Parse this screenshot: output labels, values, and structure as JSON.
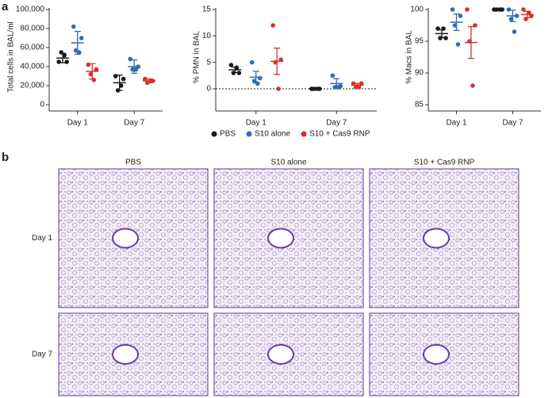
{
  "panel_labels": [
    "a",
    "b"
  ],
  "chart_data": [
    {
      "type": "scatter",
      "ylabel": "Total cells in BAL/ml",
      "categories": [
        "Day 1",
        "Day 7"
      ],
      "ylim": [
        0,
        100000
      ],
      "yticks": [
        0,
        {
          "value": 20000,
          "label": "20,000"
        },
        {
          "value": 40000,
          "label": "40,000"
        },
        {
          "value": 60000,
          "label": "60,000"
        },
        {
          "value": 80000,
          "label": "80,000"
        },
        {
          "value": 100000,
          "label": "100,000"
        }
      ],
      "series": [
        {
          "name": "PBS",
          "color": "#1a1a1a",
          "values": [
            [
              45000,
              45000,
              55000,
              52000
            ],
            [
              30000,
              27000,
              15000,
              20000
            ]
          ],
          "mean": [
            49000,
            23000
          ],
          "error": [
            5000,
            8000
          ]
        },
        {
          "name": "S10 alone",
          "color": "#2e6db4",
          "values": [
            [
              82000,
              70000,
              57000,
              55000
            ],
            [
              48000,
              40000,
              37000,
              37000
            ]
          ],
          "mean": [
            65000,
            40000
          ],
          "error": [
            12000,
            7000
          ]
        },
        {
          "name": "S10 + Cas9 RNP",
          "color": "#d9302c",
          "values": [
            [
              42000,
              37000,
              32000,
              26000
            ],
            [
              27000,
              25000,
              23000,
              25000
            ]
          ],
          "mean": [
            35000,
            25000
          ],
          "error": [
            8000,
            2000
          ]
        }
      ]
    },
    {
      "type": "scatter",
      "ylabel": "% PMN in BAL",
      "categories": [
        "Day 1",
        "Day 7"
      ],
      "ylim": [
        -3,
        15
      ],
      "yticks": [
        0,
        5,
        10,
        15
      ],
      "hline": 0,
      "series": [
        {
          "name": "PBS",
          "color": "#1a1a1a",
          "values": [
            [
              4.5,
              3,
              3,
              4
            ],
            [
              0,
              0,
              0,
              0
            ]
          ],
          "mean": [
            3.6,
            0
          ],
          "error": [
            0.5,
            0
          ]
        },
        {
          "name": "S10 alone",
          "color": "#2e6db4",
          "values": [
            [
              5,
              2,
              1.5,
              1
            ],
            [
              2.5,
              0.5,
              0.3,
              0.3
            ]
          ],
          "mean": [
            2.2,
            1
          ],
          "error": [
            1.1,
            0.9
          ]
        },
        {
          "name": "S10 + Cas9 RNP",
          "color": "#d9302c",
          "values": [
            [
              12,
              5.5,
              5,
              0
            ],
            [
              1,
              1,
              0.3,
              0.3
            ]
          ],
          "mean": [
            5.2,
            0.7
          ],
          "error": [
            2.5,
            0.3
          ]
        }
      ]
    },
    {
      "type": "scatter",
      "ylabel": "% Macs in BAL",
      "categories": [
        "Day 1",
        "Day 7"
      ],
      "ylim": [
        85,
        100
      ],
      "yticks": [
        85,
        90,
        95,
        100
      ],
      "series": [
        {
          "name": "PBS",
          "color": "#1a1a1a",
          "values": [
            [
              97,
              95.5,
              95.5,
              97
            ],
            [
              100,
              100,
              100,
              100
            ]
          ],
          "mean": [
            96.2,
            100
          ],
          "error": [
            0.6,
            0
          ]
        },
        {
          "name": "S10 alone",
          "color": "#2e6db4",
          "values": [
            [
              100,
              99,
              97.5,
              94.5
            ],
            [
              100,
              99,
              98.5,
              96.5
            ]
          ],
          "mean": [
            98,
            99
          ],
          "error": [
            1.3,
            0.9
          ]
        },
        {
          "name": "S10 + Cas9 RNP",
          "color": "#d9302c",
          "values": [
            [
              100,
              97.5,
              95,
              88
            ],
            [
              100,
              99,
              98.5,
              99.5
            ]
          ],
          "mean": [
            94.8,
            99.2
          ],
          "error": [
            2.5,
            0.5
          ]
        }
      ]
    }
  ],
  "histology": {
    "columns": [
      "PBS",
      "S10 alone",
      "S10 + Cas9 RNP"
    ],
    "rows": [
      "Day 1",
      "Day 7"
    ]
  }
}
